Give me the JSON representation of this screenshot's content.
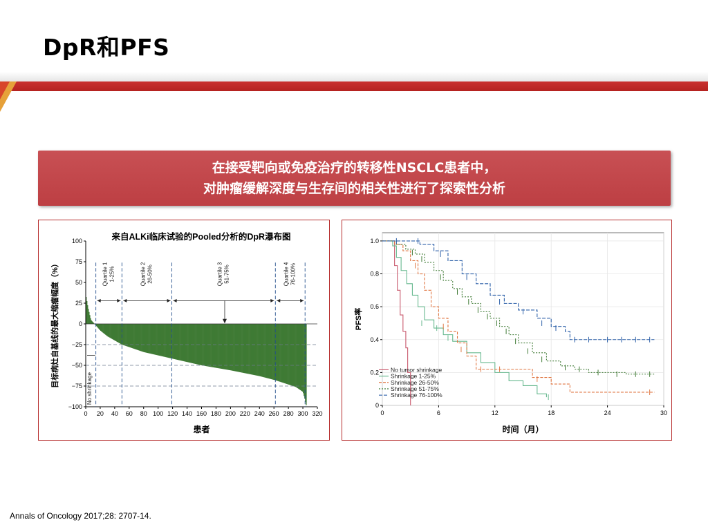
{
  "slide": {
    "title": "DpR和PFS",
    "banner_line1": "在接受靶向或免疫治疗的转移性NSCLC患者中，",
    "banner_line2": "对肿瘤缓解深度与生存间的相关性进行了探索性分析",
    "citation": "Annals of Oncology 2017;28: 2707-14.",
    "accent_color": "#c0302e",
    "banner_color": "#c24549"
  },
  "chart_data": [
    {
      "type": "bar",
      "title": "来自ALKi临床试验的Pooled分析的DpR瀑布图",
      "xlabel": "患者",
      "ylabel": "目标病灶自基线的最大缩瘤幅度（%）",
      "xlim": [
        0,
        320
      ],
      "ylim": [
        -100,
        100
      ],
      "xticks": [
        0,
        20,
        40,
        60,
        80,
        100,
        120,
        140,
        160,
        180,
        200,
        220,
        240,
        260,
        280,
        300,
        320
      ],
      "yticks": [
        100,
        75,
        50,
        25,
        0,
        -25,
        -50,
        -75,
        -100
      ],
      "ytick_labels": [
        "100",
        "75",
        "50",
        "25",
        "0",
        "−25",
        "−50",
        "−75",
        "−100"
      ],
      "bar_color": "#3f7a34",
      "n_patients": 305,
      "waterfall_profile": {
        "x": [
          0,
          3,
          7,
          12,
          15,
          20,
          30,
          50,
          80,
          120,
          160,
          200,
          240,
          262,
          290,
          300,
          303,
          305
        ],
        "y": [
          35,
          20,
          5,
          0,
          -3,
          -8,
          -15,
          -25,
          -34,
          -42,
          -50,
          -56,
          -63,
          -68,
          -76,
          -82,
          -92,
          -100
        ]
      },
      "quartiles": [
        {
          "name": "No shrinkage",
          "range": ""
        },
        {
          "name": "Quartile 1",
          "range": "1-25%"
        },
        {
          "name": "Quartile 2",
          "range": "26-50%"
        },
        {
          "name": "Quartile 3",
          "range": "51-75%"
        },
        {
          "name": "Quartile 4",
          "range": "76-100%"
        }
      ],
      "quartile_boundaries_x": [
        14,
        50,
        119,
        262,
        303
      ],
      "reference_lines_y": [
        -25,
        -50,
        -75
      ]
    },
    {
      "type": "line",
      "ylabel": "PFS率",
      "xlabel": "时间（月）",
      "xlim": [
        0,
        30
      ],
      "ylim": [
        0,
        1.05
      ],
      "xticks": [
        0,
        6,
        12,
        18,
        24,
        30
      ],
      "yticks": [
        0,
        0.2,
        0.4,
        0.6,
        0.8,
        1.0
      ],
      "ytick_labels": [
        "0",
        "0.2",
        "0.4",
        "0.6",
        "0.8",
        "1.0"
      ],
      "legend_position": "bottom-left",
      "series": [
        {
          "name": "No tumor shrinkage",
          "color": "#c95a6e",
          "dash": "",
          "x": [
            0,
            1,
            1.3,
            1.6,
            1.9,
            2.2,
            2.5,
            2.7,
            3.0
          ],
          "y": [
            1.0,
            1.0,
            0.85,
            0.7,
            0.55,
            0.45,
            0.35,
            0.2,
            0.0
          ],
          "censors": []
        },
        {
          "name": "Shrinkage 1-25%",
          "color": "#66b88e",
          "dash": "",
          "x": [
            0,
            1.1,
            1.5,
            2.0,
            2.6,
            3.2,
            3.8,
            4.5,
            5.5,
            6.5,
            7.5,
            9,
            10.5,
            12,
            13.5,
            15,
            16.5,
            17.5
          ],
          "y": [
            1.0,
            0.97,
            0.9,
            0.82,
            0.74,
            0.67,
            0.6,
            0.52,
            0.47,
            0.43,
            0.39,
            0.32,
            0.26,
            0.2,
            0.15,
            0.12,
            0.07,
            0.05
          ],
          "censors": [
            [
              4.2,
              0.5
            ],
            [
              5.8,
              0.47
            ],
            [
              7.0,
              0.41
            ],
            [
              17.7,
              0.05
            ]
          ]
        },
        {
          "name": "Shrinkage 26-50%",
          "color": "#e07540",
          "dash": "4,2",
          "x": [
            0,
            1.3,
            2.2,
            3.0,
            3.8,
            4.5,
            5.2,
            6.0,
            7.0,
            8.0,
            9.0,
            10.0,
            12.0,
            14.0,
            16.0,
            18.0,
            20.0,
            22.0,
            24.0,
            29.0
          ],
          "y": [
            1.0,
            0.98,
            0.94,
            0.88,
            0.8,
            0.7,
            0.6,
            0.53,
            0.45,
            0.38,
            0.3,
            0.22,
            0.22,
            0.22,
            0.17,
            0.13,
            0.08,
            0.08,
            0.08,
            0.08
          ],
          "censors": [
            [
              3.5,
              0.85
            ],
            [
              6.5,
              0.48
            ],
            [
              8.4,
              0.34
            ],
            [
              10.5,
              0.22
            ],
            [
              12.5,
              0.22
            ],
            [
              16.5,
              0.16
            ],
            [
              28.5,
              0.08
            ]
          ]
        },
        {
          "name": "Shrinkage 51-75%",
          "color": "#3f7a34",
          "dash": "2,2",
          "x": [
            0,
            1.5,
            2.5,
            3.5,
            4.5,
            5.5,
            6.5,
            7.5,
            8.5,
            9.5,
            10.5,
            11.5,
            12.5,
            13.5,
            14.5,
            16.0,
            17.5,
            19.0,
            20.5,
            22.0,
            24.0,
            26.0,
            29.0
          ],
          "y": [
            1.0,
            0.98,
            0.95,
            0.92,
            0.87,
            0.82,
            0.76,
            0.71,
            0.66,
            0.62,
            0.57,
            0.53,
            0.48,
            0.43,
            0.38,
            0.32,
            0.27,
            0.24,
            0.22,
            0.2,
            0.2,
            0.19,
            0.19
          ],
          "censors": [
            [
              3.2,
              0.93
            ],
            [
              4.2,
              0.89
            ],
            [
              6.2,
              0.78
            ],
            [
              8.0,
              0.69
            ],
            [
              9.2,
              0.63
            ],
            [
              10.2,
              0.58
            ],
            [
              11.2,
              0.54
            ],
            [
              12.2,
              0.5
            ],
            [
              13.2,
              0.45
            ],
            [
              14.2,
              0.39
            ],
            [
              15.5,
              0.33
            ],
            [
              17.0,
              0.28
            ],
            [
              19.5,
              0.23
            ],
            [
              21.0,
              0.22
            ],
            [
              23.0,
              0.2
            ],
            [
              25.0,
              0.19
            ],
            [
              27.0,
              0.19
            ],
            [
              28.5,
              0.19
            ]
          ]
        },
        {
          "name": "Shrinkage 76-100%",
          "color": "#2b5fa8",
          "dash": "5,2",
          "x": [
            0,
            2.0,
            4.0,
            5.5,
            7.0,
            8.5,
            10.0,
            11.5,
            13.0,
            14.5,
            16.5,
            18.0,
            19.5,
            20.0,
            23.0,
            29.0
          ],
          "y": [
            1.0,
            1.0,
            0.98,
            0.94,
            0.88,
            0.8,
            0.74,
            0.67,
            0.62,
            0.58,
            0.53,
            0.48,
            0.45,
            0.4,
            0.4,
            0.4
          ],
          "censors": [
            [
              1.5,
              1.0
            ],
            [
              3.8,
              1.0
            ],
            [
              6.2,
              0.92
            ],
            [
              9.0,
              0.78
            ],
            [
              12.5,
              0.63
            ],
            [
              15.0,
              0.57
            ],
            [
              17.0,
              0.5
            ],
            [
              18.5,
              0.47
            ],
            [
              20.5,
              0.4
            ],
            [
              22.0,
              0.4
            ],
            [
              24.0,
              0.4
            ],
            [
              25.5,
              0.4
            ],
            [
              27.0,
              0.4
            ],
            [
              28.5,
              0.4
            ]
          ]
        }
      ]
    }
  ]
}
